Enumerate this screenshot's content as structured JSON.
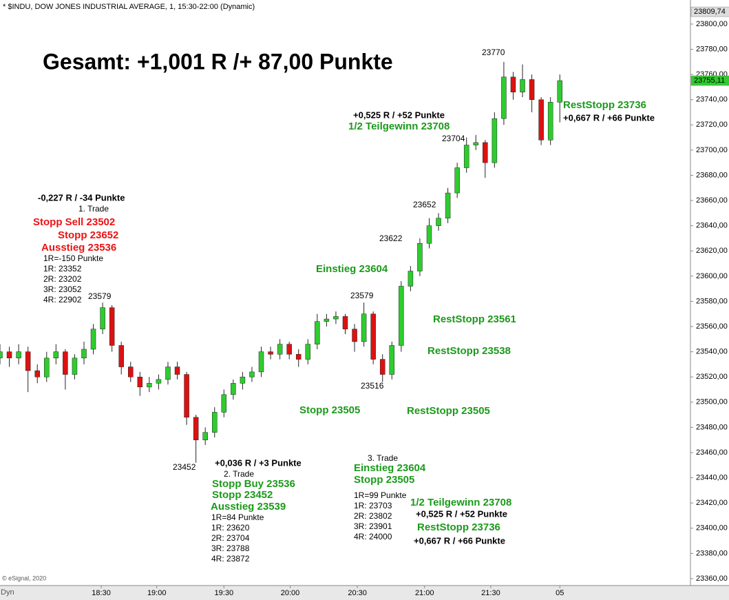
{
  "chart_data": {
    "type": "candlestick",
    "title": "* $INDU, DOW JONES INDUSTRIAL AVERAGE, 1, 15:30-22:00 (Dynamic)",
    "headline": "Gesamt: +1,001 R /+ 87,00 Punkte",
    "up_color": "#2ecc2e",
    "down_color": "#dd1111",
    "open": [
      23535,
      23540,
      23535,
      23540,
      23525,
      23520,
      23535,
      23540,
      23522,
      23535,
      23542,
      23558,
      23575,
      23545,
      23528,
      23520,
      23512,
      23515,
      23518,
      23528,
      23522,
      23488,
      23470,
      23476,
      23492,
      23506,
      23515,
      23520,
      23524,
      23540,
      23538,
      23546,
      23538,
      23534,
      23546,
      23564,
      23566,
      23568,
      23558,
      23548,
      23570,
      23534,
      23522,
      23545,
      23592,
      23604,
      23626,
      23640,
      23646,
      23666,
      23686,
      23704,
      23706,
      23690,
      23725,
      23758,
      23746,
      23756,
      23740,
      23708,
      23738
    ],
    "high": [
      23546,
      23544,
      23546,
      23544,
      23530,
      23540,
      23546,
      23542,
      23538,
      23548,
      23562,
      23579,
      23577,
      23548,
      23532,
      23524,
      23520,
      23522,
      23532,
      23532,
      23524,
      23490,
      23480,
      23496,
      23510,
      23518,
      23524,
      23528,
      23544,
      23544,
      23550,
      23548,
      23542,
      23550,
      23570,
      23570,
      23572,
      23570,
      23562,
      23579,
      23572,
      23538,
      23548,
      23596,
      23608,
      23630,
      23646,
      23650,
      23670,
      23690,
      23710,
      23712,
      23708,
      23730,
      23770,
      23762,
      23768,
      23760,
      23742,
      23742,
      23760
    ],
    "low": [
      23530,
      23528,
      23530,
      23508,
      23515,
      23516,
      23530,
      23510,
      23518,
      23530,
      23538,
      23554,
      23540,
      23522,
      23516,
      23505,
      23508,
      23510,
      23514,
      23518,
      23482,
      23452,
      23466,
      23472,
      23488,
      23502,
      23510,
      23516,
      23520,
      23534,
      23534,
      23534,
      23528,
      23530,
      23542,
      23560,
      23562,
      23554,
      23540,
      23544,
      23530,
      23516,
      23518,
      23540,
      23588,
      23600,
      23622,
      23636,
      23642,
      23662,
      23682,
      23700,
      23678,
      23686,
      23720,
      23740,
      23742,
      23730,
      23704,
      23704,
      23722
    ],
    "close": [
      23540,
      23535,
      23540,
      23525,
      23520,
      23535,
      23540,
      23522,
      23535,
      23542,
      23558,
      23575,
      23545,
      23528,
      23520,
      23512,
      23515,
      23518,
      23528,
      23522,
      23488,
      23470,
      23476,
      23492,
      23506,
      23515,
      23520,
      23524,
      23540,
      23538,
      23546,
      23538,
      23534,
      23546,
      23564,
      23566,
      23568,
      23558,
      23548,
      23570,
      23534,
      23522,
      23545,
      23592,
      23604,
      23626,
      23640,
      23646,
      23666,
      23686,
      23704,
      23706,
      23690,
      23725,
      23758,
      23746,
      23756,
      23740,
      23708,
      23738,
      23755.11
    ],
    "xlim": [
      0,
      74
    ],
    "xticks": [
      {
        "value": 10.85,
        "label": "18:30"
      },
      {
        "value": 16.8,
        "label": "19:00"
      },
      {
        "value": 24,
        "label": "19:30"
      },
      {
        "value": 31.1,
        "label": "20:00"
      },
      {
        "value": 38.3,
        "label": "20:30"
      },
      {
        "value": 45.5,
        "label": "21:00"
      },
      {
        "value": 52.6,
        "label": "21:30"
      },
      {
        "value": 60,
        "label": "05"
      }
    ],
    "ylim": [
      23354.5,
      23819.1
    ],
    "yticks": [
      {
        "value": 23360,
        "label": "23360,00"
      },
      {
        "value": 23380,
        "label": "23380,00"
      },
      {
        "value": 23400,
        "label": "23400,00"
      },
      {
        "value": 23420,
        "label": "23420,00"
      },
      {
        "value": 23440,
        "label": "23440,00"
      },
      {
        "value": 23460,
        "label": "23460,00"
      },
      {
        "value": 23480,
        "label": "23480,00"
      },
      {
        "value": 23500,
        "label": "23500,00"
      },
      {
        "value": 23520,
        "label": "23520,00"
      },
      {
        "value": 23540,
        "label": "23540,00"
      },
      {
        "value": 23560,
        "label": "23560,00"
      },
      {
        "value": 23580,
        "label": "23580,00"
      },
      {
        "value": 23600,
        "label": "23600,00"
      },
      {
        "value": 23620,
        "label": "23620,00"
      },
      {
        "value": 23640,
        "label": "23640,00"
      },
      {
        "value": 23660,
        "label": "23660,00"
      },
      {
        "value": 23680,
        "label": "23680,00"
      },
      {
        "value": 23700,
        "label": "23700,00"
      },
      {
        "value": 23720,
        "label": "23720,00"
      },
      {
        "value": 23740,
        "label": "23740,00"
      },
      {
        "value": 23760,
        "label": "23760,00"
      },
      {
        "value": 23780,
        "label": "23780,00"
      },
      {
        "value": 23800,
        "label": "23800,00"
      }
    ],
    "price_markers": [
      {
        "value": 23755.11,
        "label": "23755,11"
      },
      {
        "value": 23809.74,
        "label": "23809,74"
      }
    ],
    "annotations": [
      "23770",
      "+0,525 R / +52 Punkte",
      "1/2 Teilgewinn 23708",
      "23704",
      "RestStopp 23736",
      "+0,667 R / +66 Punkte",
      "-0,227 R / -34 Punkte",
      "1. Trade",
      "Stopp Sell 23502",
      "Stopp 23652",
      "Ausstieg 23536",
      "1R=-150 Punkte",
      "1R: 23352",
      "2R: 23202",
      "3R: 23052",
      "4R: 22902",
      "23579",
      "23652",
      "23622",
      "Einstieg 23604",
      "23579",
      "RestStopp 23561",
      "RestStopp 23538",
      "23516",
      "Stopp 23505",
      "RestStopp 23505",
      "23452",
      "+0,036 R / +3 Punkte",
      "2. Trade",
      "Stopp Buy 23536",
      "Stopp 23452",
      "Ausstieg 23539",
      "1R=84 Punkte",
      "1R: 23620",
      "2R: 23704",
      "3R: 23788",
      "4R: 23872",
      "3. Trade",
      "Einstieg 23604",
      "Stopp 23505",
      "1R=99 Punkte",
      "1R: 23703",
      "2R: 23802",
      "3R: 23901",
      "4R: 24000",
      "1/2 Teilgewinn 23708",
      "+0,525 R / +52 Punkte",
      "RestStopp 23736",
      "+0,667 R / +66 Punkte"
    ],
    "copyright": "© eSignal, 2020",
    "mode": "Dyn"
  }
}
